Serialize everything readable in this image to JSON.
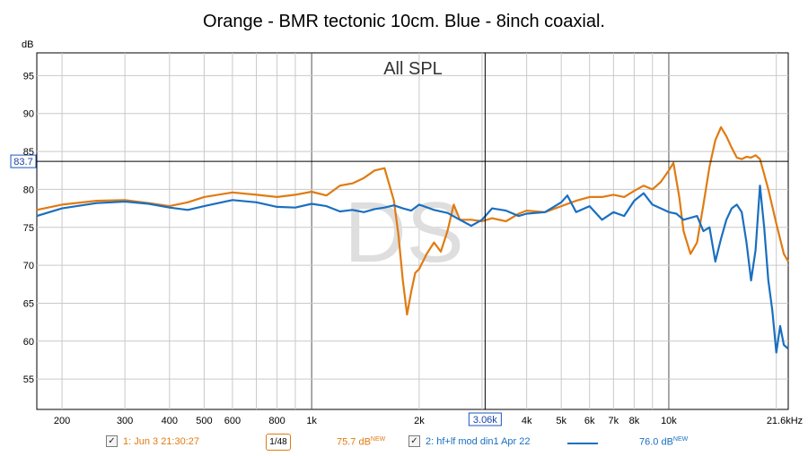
{
  "chart_data": {
    "type": "line",
    "title": "Orange - BMR tectonic 10cm. Blue - 8inch coaxial.",
    "annotation": "All SPL",
    "watermark": "DS",
    "ylabel": "dB",
    "xscale": "log",
    "xlim": [
      170,
      21600
    ],
    "ylim": [
      51,
      98
    ],
    "grid": true,
    "yticks": [
      95,
      90,
      85,
      80,
      75,
      70,
      65,
      60,
      55
    ],
    "xtick_labels": [
      {
        "f": 200,
        "label": "200"
      },
      {
        "f": 300,
        "label": "300"
      },
      {
        "f": 400,
        "label": "400"
      },
      {
        "f": 500,
        "label": "500"
      },
      {
        "f": 600,
        "label": "600"
      },
      {
        "f": 800,
        "label": "800"
      },
      {
        "f": 1000,
        "label": "1k"
      },
      {
        "f": 2000,
        "label": "2k"
      },
      {
        "f": 4000,
        "label": "4k"
      },
      {
        "f": 5000,
        "label": "5k"
      },
      {
        "f": 6000,
        "label": "6k"
      },
      {
        "f": 7000,
        "label": "7k"
      },
      {
        "f": 8000,
        "label": "8k"
      },
      {
        "f": 10000,
        "label": "10k"
      },
      {
        "f": 21600,
        "label": "21.6kHz"
      }
    ],
    "cursor": {
      "x": 3060,
      "x_label": "3.06k",
      "y": 83.7,
      "y_label": "83.7"
    },
    "series": [
      {
        "color": "#e07b12",
        "x": [
          170,
          200,
          250,
          300,
          350,
          400,
          450,
          500,
          600,
          700,
          800,
          900,
          1000,
          1100,
          1200,
          1300,
          1400,
          1500,
          1600,
          1700,
          1750,
          1800,
          1850,
          1900,
          1950,
          2000,
          2100,
          2200,
          2300,
          2400,
          2500,
          2600,
          2800,
          3000,
          3200,
          3500,
          3800,
          4000,
          4500,
          5000,
          5500,
          6000,
          6500,
          7000,
          7500,
          8000,
          8500,
          9000,
          9500,
          10000,
          10300,
          10700,
          11000,
          11500,
          12000,
          12500,
          13000,
          13500,
          14000,
          14500,
          15000,
          15500,
          16000,
          16500,
          17000,
          17500,
          18000,
          18500,
          19000,
          20000,
          21000,
          21600
        ],
        "y": [
          77.3,
          78.0,
          78.5,
          78.6,
          78.2,
          77.8,
          78.3,
          79.0,
          79.6,
          79.3,
          79.0,
          79.3,
          79.7,
          79.2,
          80.5,
          80.8,
          81.5,
          82.5,
          82.8,
          78.5,
          74.0,
          68.0,
          63.5,
          66.5,
          69.0,
          69.5,
          71.5,
          73.0,
          71.8,
          74.5,
          78.0,
          76.0,
          76.0,
          75.8,
          76.2,
          75.8,
          76.8,
          77.2,
          77.0,
          77.8,
          78.5,
          79.0,
          79.0,
          79.3,
          79.0,
          79.8,
          80.5,
          80.0,
          81.0,
          82.5,
          83.5,
          79.0,
          74.5,
          71.5,
          73.0,
          78.0,
          83.0,
          86.5,
          88.2,
          87.0,
          85.5,
          84.2,
          84.0,
          84.3,
          84.2,
          84.5,
          84.0,
          82.0,
          80.0,
          75.5,
          71.5,
          70.5
        ]
      },
      {
        "color": "#1a6fc0",
        "x": [
          170,
          200,
          250,
          300,
          350,
          400,
          450,
          500,
          600,
          700,
          800,
          900,
          1000,
          1100,
          1200,
          1300,
          1400,
          1500,
          1600,
          1700,
          1800,
          1900,
          2000,
          2200,
          2400,
          2600,
          2800,
          3000,
          3200,
          3500,
          3800,
          4000,
          4500,
          5000,
          5200,
          5500,
          6000,
          6500,
          7000,
          7500,
          8000,
          8500,
          9000,
          9500,
          10000,
          10500,
          11000,
          12000,
          12500,
          13000,
          13500,
          14000,
          14500,
          15000,
          15500,
          16000,
          16500,
          17000,
          17500,
          18000,
          18500,
          19000,
          19500,
          20000,
          20500,
          21000,
          21600
        ],
        "y": [
          76.5,
          77.5,
          78.2,
          78.4,
          78.1,
          77.6,
          77.3,
          77.8,
          78.6,
          78.3,
          77.7,
          77.6,
          78.1,
          77.8,
          77.1,
          77.3,
          77.0,
          77.4,
          77.6,
          77.9,
          77.5,
          77.2,
          78.0,
          77.3,
          76.9,
          76.0,
          75.2,
          76.0,
          77.5,
          77.2,
          76.5,
          76.8,
          77.0,
          78.3,
          79.2,
          77.0,
          77.8,
          76.0,
          77.0,
          76.5,
          78.5,
          79.5,
          78.0,
          77.5,
          77.0,
          76.8,
          76.0,
          76.5,
          74.5,
          75.0,
          70.5,
          73.5,
          76.0,
          77.5,
          78.0,
          77.0,
          73.0,
          68.0,
          72.0,
          80.5,
          75.0,
          68.0,
          64.0,
          58.5,
          62.0,
          59.5,
          59.0
        ]
      }
    ]
  },
  "legend": {
    "item1_label": "1: Jun 3 21:30:27",
    "item1_value": "75.7 dB",
    "item1_new": "NEW",
    "smoothing_label": "1/48",
    "item2_label": "2: hf+lf mod din1 Apr 22",
    "item2_value": "76.0 dB",
    "item2_new": "NEW",
    "check_glyph": "✓"
  }
}
